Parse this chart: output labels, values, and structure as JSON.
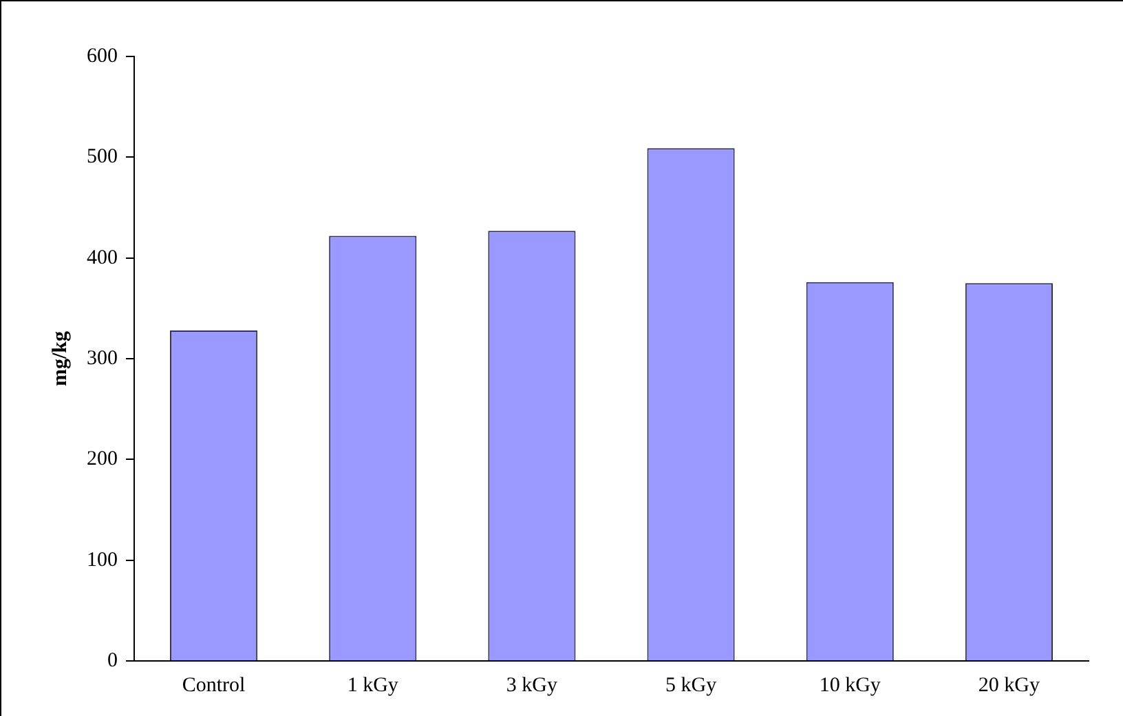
{
  "chart_data": {
    "type": "bar",
    "ylabel": "mg/kg",
    "categories": [
      "Control",
      "1 kGy",
      "3 kGy",
      "5 kGy",
      "10 kGy",
      "20 kGy"
    ],
    "values": [
      328,
      422,
      427,
      509,
      376,
      375
    ],
    "color": "#9999ff",
    "ylim": [
      0,
      600
    ],
    "yticks": [
      0,
      100,
      200,
      300,
      400,
      500,
      600
    ],
    "grid": false,
    "legend": false
  }
}
